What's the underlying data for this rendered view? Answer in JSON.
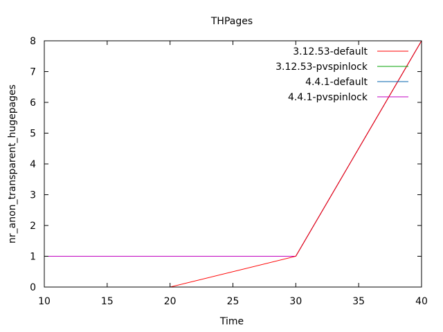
{
  "chart_data": {
    "type": "line",
    "title": "THPages",
    "xlabel": "Time",
    "ylabel": "nr_anon_transparent_hugepages",
    "xlim": [
      10,
      40
    ],
    "ylim": [
      0,
      8
    ],
    "xticks": [
      10,
      15,
      20,
      25,
      30,
      35,
      40
    ],
    "yticks": [
      0,
      1,
      2,
      3,
      4,
      5,
      6,
      7,
      8
    ],
    "grid": false,
    "legend_position": "top-right",
    "series": [
      {
        "name": "3.12.53-default",
        "color": "#ff0000",
        "x": [
          20,
          30,
          40
        ],
        "y": [
          0,
          1,
          8
        ]
      },
      {
        "name": "3.12.53-pvspinlock",
        "color": "#00a000",
        "x": [
          10,
          30,
          40
        ],
        "y": [
          1,
          1,
          8
        ]
      },
      {
        "name": "4.4.1-default",
        "color": "#0060ad",
        "x": [
          10,
          30,
          40
        ],
        "y": [
          1,
          1,
          8
        ]
      },
      {
        "name": "4.4.1-pvspinlock",
        "color": "#c000c0",
        "x": [
          10,
          30,
          40
        ],
        "y": [
          1,
          1,
          8
        ]
      }
    ],
    "draw_order": [
      1,
      2,
      3,
      0
    ]
  }
}
